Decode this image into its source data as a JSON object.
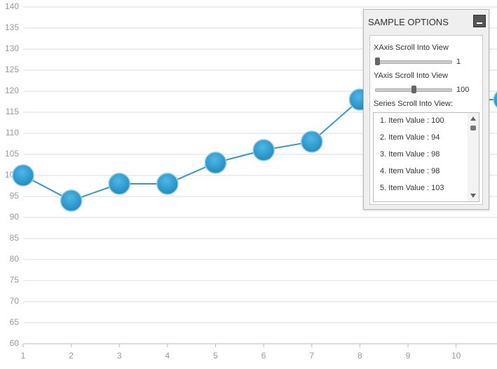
{
  "chart_data": {
    "type": "line",
    "x": [
      1,
      2,
      3,
      4,
      5,
      6,
      7,
      8,
      11
    ],
    "series": [
      {
        "color": "#2f9bcf",
        "values": [
          100,
          94,
          98,
          98,
          103,
          106,
          108,
          118,
          118
        ]
      }
    ],
    "xlim": [
      1,
      10.85
    ],
    "xticks": [
      1,
      2,
      3,
      4,
      5,
      6,
      7,
      8,
      9,
      10
    ],
    "ylim": [
      60,
      140
    ],
    "yticks": [
      60,
      65,
      70,
      75,
      80,
      85,
      90,
      95,
      100,
      105,
      110,
      115,
      120,
      125,
      130,
      135,
      140
    ],
    "grid": true
  },
  "options_panel": {
    "title": "SAMPLE OPTIONS",
    "x_label": "XAxis Scroll Into View",
    "x_value": 1,
    "y_label": "YAxis Scroll Into View",
    "y_value": 100,
    "series_label": "Series Scroll Into View:",
    "items": [
      "1. Item Value : 100",
      "2. Item Value : 94",
      "3. Item Value : 98",
      "4. Item Value : 98",
      "5. Item Value : 103"
    ]
  }
}
